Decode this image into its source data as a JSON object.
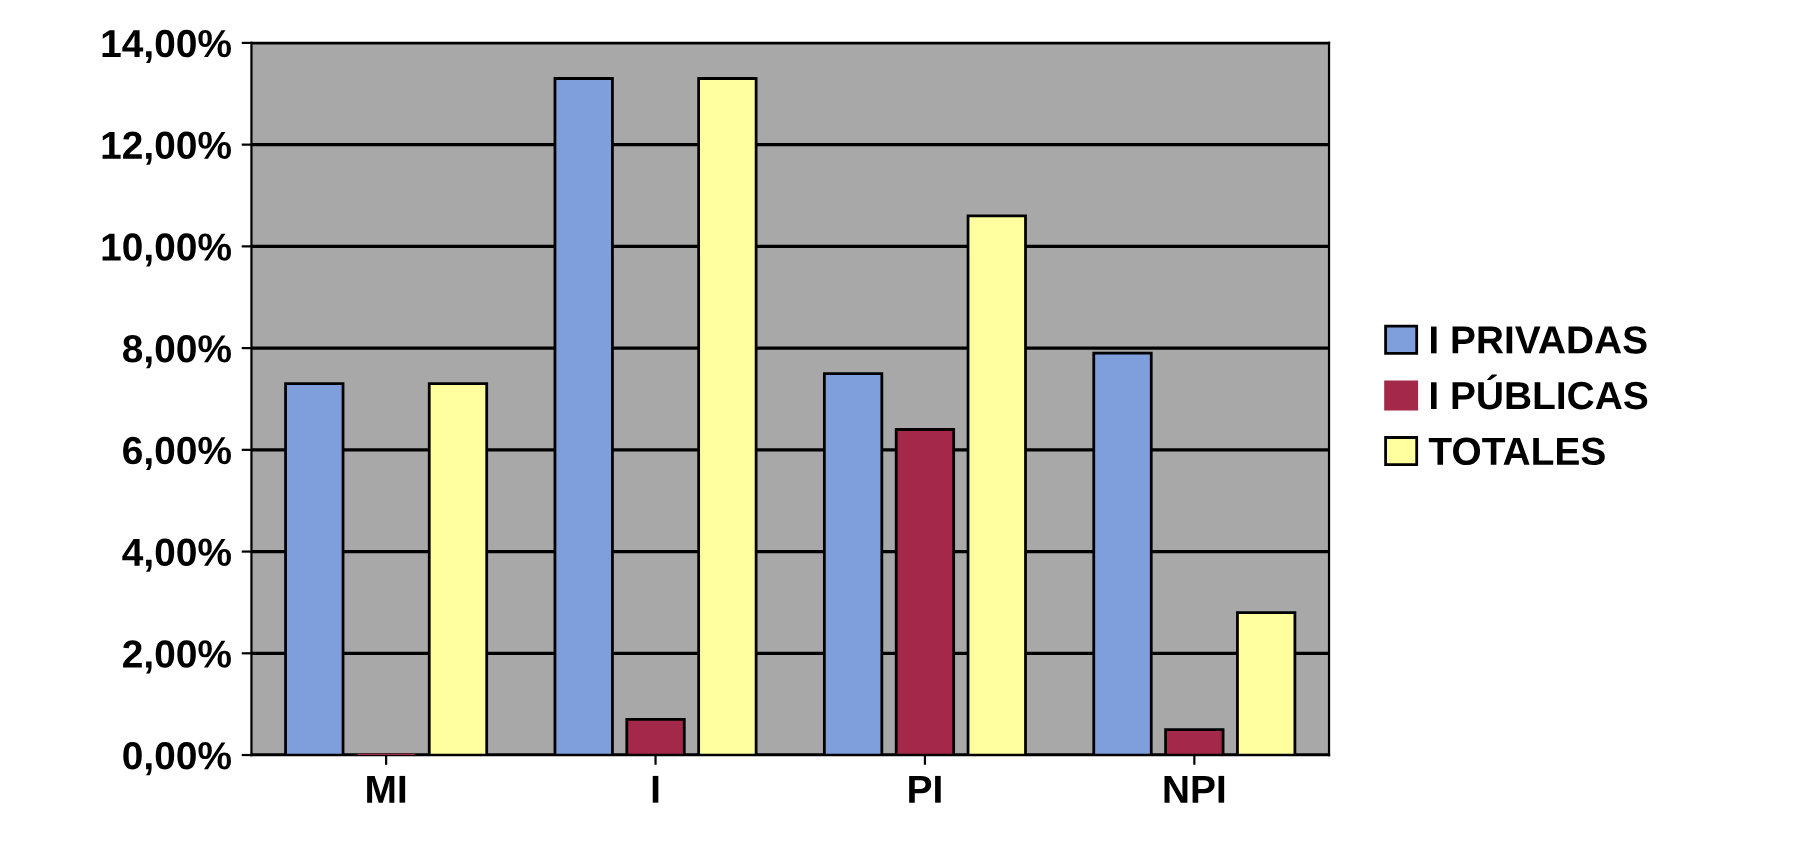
{
  "chart_data": {
    "type": "bar",
    "categories": [
      "MI",
      "I",
      "PI",
      "NPI"
    ],
    "series": [
      {
        "name": "I PRIVADAS",
        "color": "#7f9fdc",
        "values": [
          7.3,
          13.3,
          7.5,
          7.9
        ]
      },
      {
        "name": "I PÚBLICAS",
        "color": "#a3284a",
        "values": [
          0,
          0.7,
          6.4,
          0.5
        ]
      },
      {
        "name": "TOTALES",
        "color": "#ffffa0",
        "values": [
          7.3,
          13.3,
          10.6,
          2.8
        ]
      }
    ],
    "ylim": [
      0,
      14
    ],
    "yticks": [
      {
        "value": 0,
        "label": "0,00%"
      },
      {
        "value": 2,
        "label": "2,00%"
      },
      {
        "value": 4,
        "label": "4,00%"
      },
      {
        "value": 6,
        "label": "6,00%"
      },
      {
        "value": 8,
        "label": "8,00%"
      },
      {
        "value": 10,
        "label": "10,00%"
      },
      {
        "value": 12,
        "label": "12,00%"
      },
      {
        "value": 14,
        "label": "14,00%"
      }
    ],
    "grid": "y",
    "legend": "right"
  }
}
